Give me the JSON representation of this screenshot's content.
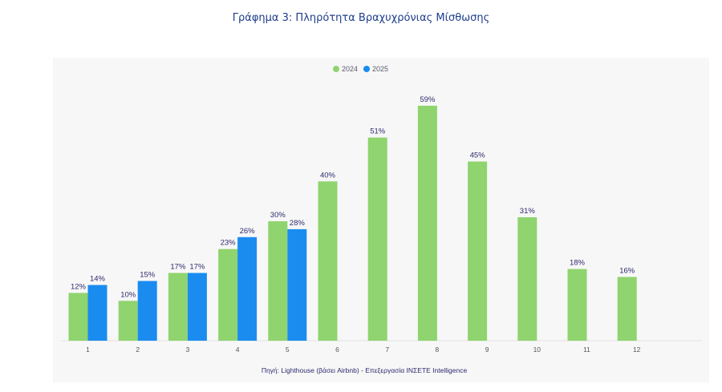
{
  "page": {
    "title": "Γράφημα 3: Πληρότητα Βραχυχρόνιας Μίσθωσης"
  },
  "chart_data": {
    "type": "bar",
    "title": "Γράφημα 3: Πληρότητα Βραχυχρόνιας Μίσθωσης",
    "xlabel": "",
    "ylabel": "",
    "categories": [
      "1",
      "2",
      "3",
      "4",
      "5",
      "6",
      "7",
      "8",
      "9",
      "10",
      "11",
      "12"
    ],
    "series": [
      {
        "name": "2024",
        "color": "#8fd46e",
        "values": [
          12,
          10,
          17,
          23,
          30,
          40,
          51,
          59,
          45,
          31,
          18,
          16
        ],
        "labels": [
          "12%",
          "10%",
          "17%",
          "23%",
          "30%",
          "40%",
          "51%",
          "59%",
          "45%",
          "31%",
          "18%",
          "16%"
        ]
      },
      {
        "name": "2025",
        "color": "#1a8cf0",
        "values": [
          14,
          15,
          17,
          26,
          28,
          null,
          null,
          null,
          null,
          null,
          null,
          null
        ],
        "labels": [
          "14%",
          "15%",
          "17%",
          "26%",
          "28%",
          null,
          null,
          null,
          null,
          null,
          null,
          null
        ]
      }
    ],
    "ylim": [
      0,
      62
    ],
    "grid": false,
    "legend_position": "top-center",
    "source": "Πηγή: Lighthouse (βάσει Airbnb) - Επεξεργασία ΙΝΣΕΤΕ Intelligence"
  }
}
